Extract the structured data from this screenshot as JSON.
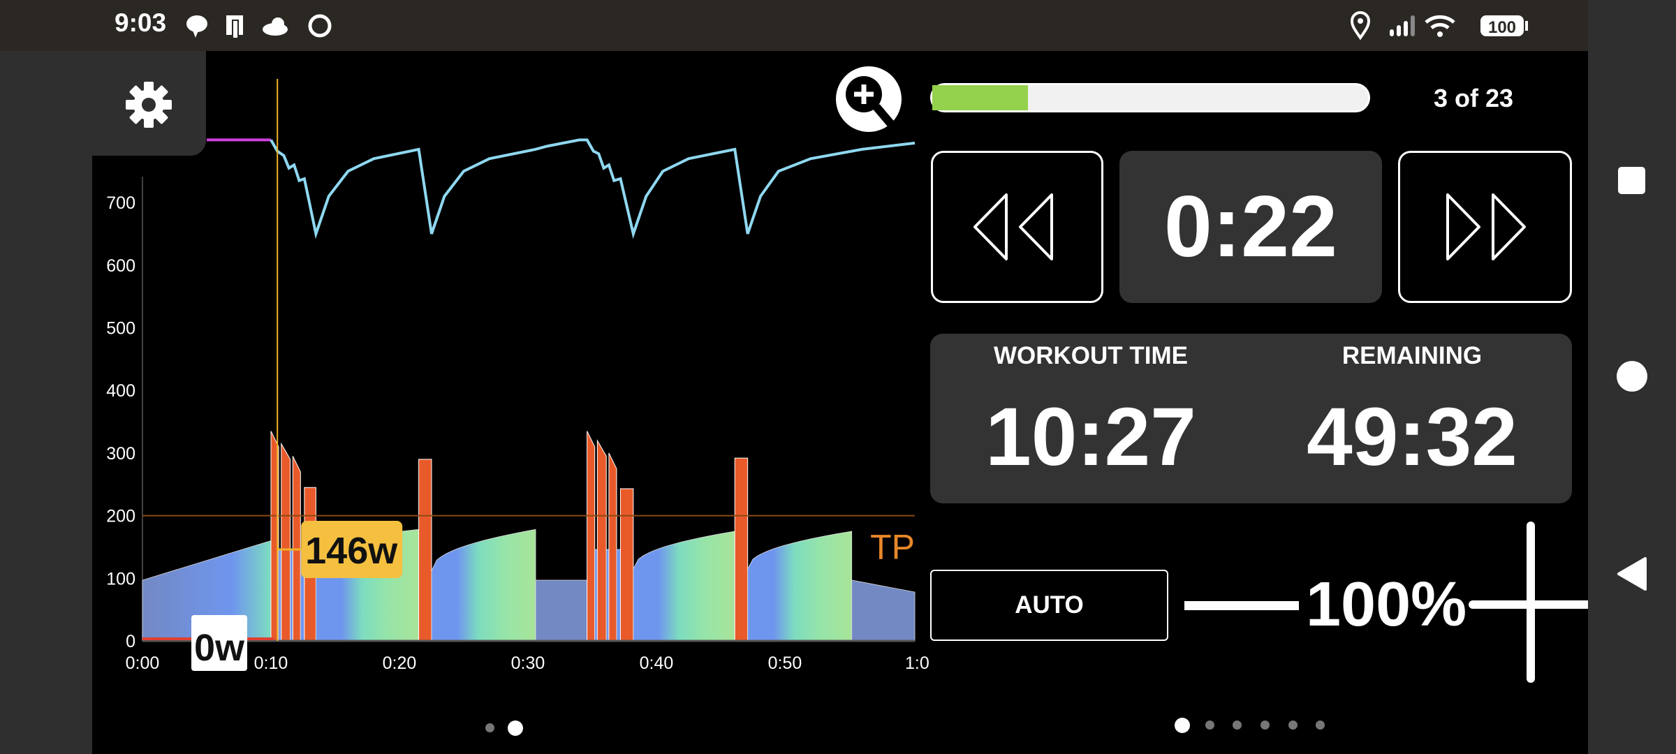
{
  "status_bar": {
    "time": "9:03",
    "battery": "100",
    "icons": [
      "chat-bubble-icon",
      "device-icon",
      "cloud-icon",
      "circle-app-icon",
      "location-icon",
      "signal-icon",
      "wifi-icon",
      "battery-icon"
    ]
  },
  "chart_data": {
    "type": "area",
    "yticks": [
      "0",
      "100",
      "200",
      "300",
      "400",
      "500",
      "600",
      "700"
    ],
    "ylim": [
      0,
      800
    ],
    "xticks": [
      "0:00",
      "0:10",
      "0:20",
      "0:30",
      "0:40",
      "0:50",
      "1:0"
    ],
    "xlim_minutes": [
      0,
      60
    ],
    "threshold": {
      "label": "TP",
      "value": 200,
      "color": "#e8872a"
    },
    "cursor_minute": 10.5,
    "cursor_value_label": "146w",
    "current_power_label": "0w",
    "target_segments": [
      {
        "start": 0,
        "end": 10,
        "from": 97,
        "to": 160,
        "kind": "ramp"
      },
      {
        "start": 10,
        "end": 10.6,
        "from": 335,
        "to": 310,
        "kind": "interval"
      },
      {
        "start": 10.6,
        "end": 10.8,
        "from": 146,
        "to": 146,
        "kind": "flat"
      },
      {
        "start": 10.8,
        "end": 11.5,
        "from": 315,
        "to": 290,
        "kind": "interval"
      },
      {
        "start": 11.5,
        "end": 11.7,
        "from": 146,
        "to": 146,
        "kind": "flat"
      },
      {
        "start": 11.7,
        "end": 12.3,
        "from": 295,
        "to": 270,
        "kind": "interval"
      },
      {
        "start": 12.3,
        "end": 12.6,
        "from": 146,
        "to": 146,
        "kind": "flat"
      },
      {
        "start": 12.6,
        "end": 13.5,
        "from": 245,
        "to": 245,
        "kind": "interval"
      },
      {
        "start": 13.5,
        "end": 21.5,
        "from": 160,
        "to": 178,
        "kind": "ramp"
      },
      {
        "start": 21.5,
        "end": 22.5,
        "from": 290,
        "to": 290,
        "kind": "interval"
      },
      {
        "start": 22.5,
        "end": 30.6,
        "from": 112,
        "to": 178,
        "kind": "curve"
      },
      {
        "start": 30.6,
        "end": 34.6,
        "from": 97,
        "to": 97,
        "kind": "flat"
      },
      {
        "start": 34.6,
        "end": 35.2,
        "from": 335,
        "to": 310,
        "kind": "interval"
      },
      {
        "start": 35.2,
        "end": 35.4,
        "from": 146,
        "to": 146,
        "kind": "flat"
      },
      {
        "start": 35.4,
        "end": 36.1,
        "from": 320,
        "to": 295,
        "kind": "interval"
      },
      {
        "start": 36.1,
        "end": 36.3,
        "from": 146,
        "to": 146,
        "kind": "flat"
      },
      {
        "start": 36.3,
        "end": 36.9,
        "from": 300,
        "to": 275,
        "kind": "interval"
      },
      {
        "start": 36.9,
        "end": 37.2,
        "from": 146,
        "to": 146,
        "kind": "flat"
      },
      {
        "start": 37.2,
        "end": 38.2,
        "from": 243,
        "to": 243,
        "kind": "interval"
      },
      {
        "start": 38.2,
        "end": 46.1,
        "from": 115,
        "to": 175,
        "kind": "curve"
      },
      {
        "start": 46.1,
        "end": 47.1,
        "from": 292,
        "to": 292,
        "kind": "interval"
      },
      {
        "start": 47.1,
        "end": 55.2,
        "from": 115,
        "to": 175,
        "kind": "curve"
      },
      {
        "start": 55.2,
        "end": 61,
        "from": 97,
        "to": 78,
        "kind": "ramp"
      }
    ],
    "balance_line": {
      "color": "#8fd8f0",
      "history_color": "#d040e0",
      "points": [
        [
          5,
          800
        ],
        [
          10,
          800
        ],
        [
          10.5,
          782
        ],
        [
          11,
          775
        ],
        [
          11.4,
          755
        ],
        [
          11.8,
          760
        ],
        [
          12.2,
          735
        ],
        [
          12.6,
          738
        ],
        [
          13.5,
          650
        ],
        [
          14.5,
          710
        ],
        [
          16,
          750
        ],
        [
          18,
          770
        ],
        [
          21.5,
          785
        ],
        [
          22.5,
          650
        ],
        [
          23.5,
          710
        ],
        [
          25,
          750
        ],
        [
          27,
          770
        ],
        [
          30.6,
          785
        ],
        [
          31.5,
          790
        ],
        [
          34,
          800
        ],
        [
          34.6,
          800
        ],
        [
          35.1,
          782
        ],
        [
          35.5,
          778
        ],
        [
          35.9,
          755
        ],
        [
          36.3,
          760
        ],
        [
          36.7,
          735
        ],
        [
          37.2,
          738
        ],
        [
          38.2,
          650
        ],
        [
          39.2,
          710
        ],
        [
          40.5,
          750
        ],
        [
          42.5,
          770
        ],
        [
          46.1,
          785
        ],
        [
          47.1,
          650
        ],
        [
          48.1,
          710
        ],
        [
          49.5,
          750
        ],
        [
          52,
          770
        ],
        [
          56,
          785
        ],
        [
          60.5,
          795
        ]
      ]
    },
    "colors": {
      "interval": "#e95a2a",
      "flat": "#7289c4",
      "grad_start": "#6f96ee",
      "grad_mid": "#7ddcc0",
      "grad_end": "#a8e49a",
      "cursor": "#f0b429"
    }
  },
  "workout": {
    "progress_fraction": 0.22,
    "progress_color": "#94d14c",
    "step_counter": "3 of 23",
    "interval_time": "0:22",
    "workout_time_label": "WORKOUT TIME",
    "workout_time": "10:27",
    "remaining_label": "REMAINING",
    "remaining": "49:32",
    "mode_label": "AUTO",
    "intensity": "100%"
  }
}
